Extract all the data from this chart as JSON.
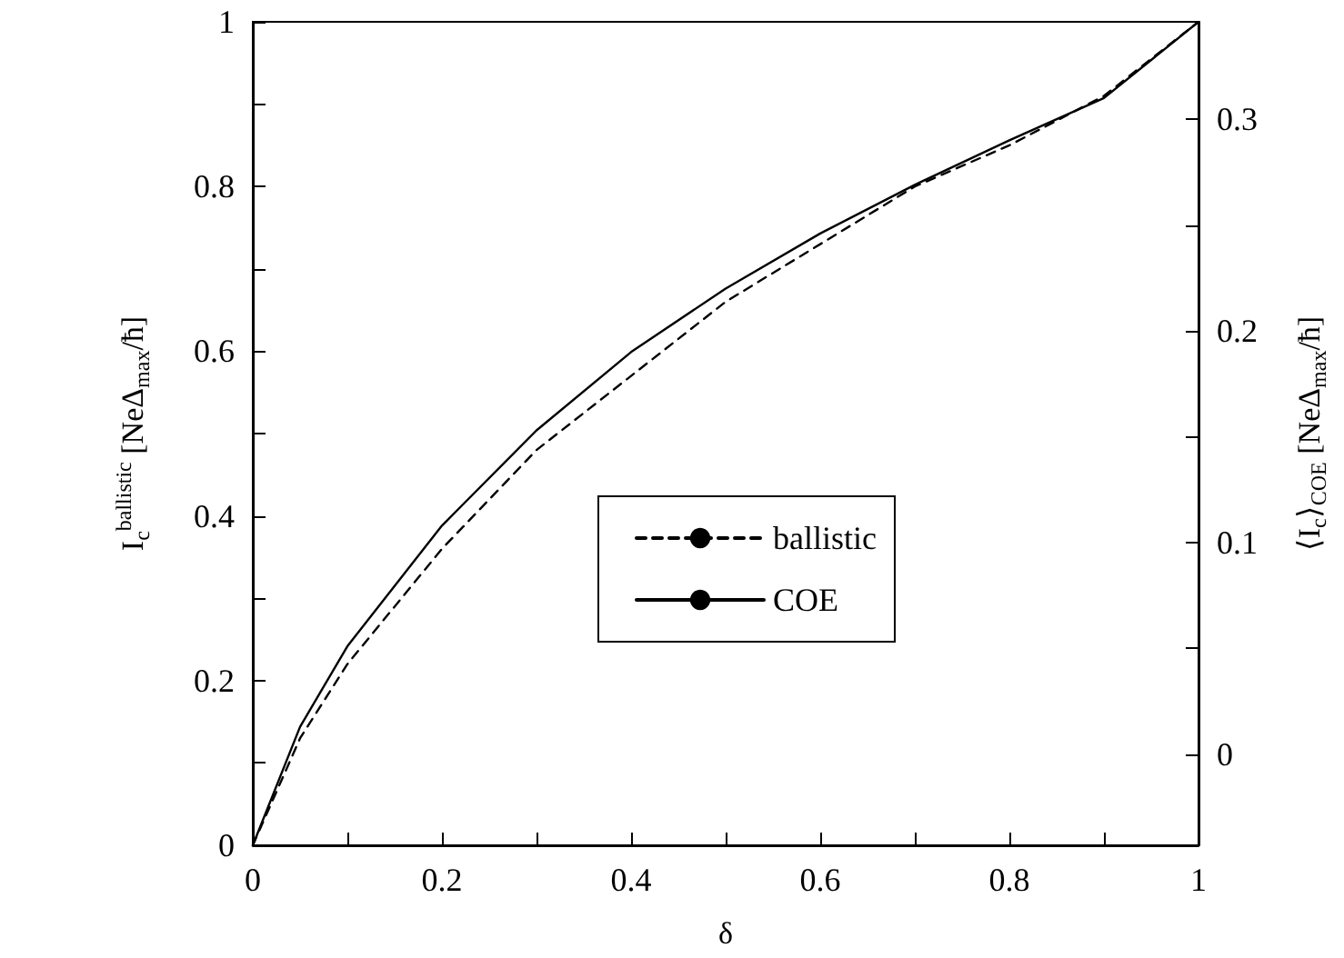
{
  "chart_data": {
    "type": "line",
    "xlabel": "δ",
    "ylabel": "I$_{c}$$^{ballistic}$ [NeΔ$_{max}$/ħ]",
    "y2label": "⟨I$_{c}$⟩$_{COE}$ [NeΔ$_{max}$/ħ]",
    "x": [
      0,
      0.05,
      0.1,
      0.2,
      0.3,
      0.4,
      0.5,
      0.6,
      0.7,
      0.8,
      0.9,
      1
    ],
    "series": [
      {
        "name": "ballistic",
        "color": "#000000",
        "line_style": "dashed",
        "values": [
          0,
          0.13,
          0.22,
          0.36,
          0.48,
          0.57,
          0.66,
          0.73,
          0.8,
          0.85,
          0.91,
          1
        ]
      },
      {
        "name": "COE",
        "color": "#000000",
        "line_style": "solid",
        "axis": "y2",
        "values": [
          -0.043,
          0.013,
          0.051,
          0.108,
          0.153,
          0.19,
          0.22,
          0.246,
          0.269,
          0.29,
          0.31,
          0.346
        ]
      }
    ],
    "xlim": [
      0,
      1
    ],
    "ylim": [
      0,
      1
    ],
    "y2lim": [
      -0.043,
      0.346
    ],
    "xticks": [
      0,
      {
        "value": 0.1,
        "label": null
      },
      0.2,
      {
        "value": 0.3,
        "label": null
      },
      0.4,
      {
        "value": 0.5,
        "label": null
      },
      0.6,
      {
        "value": 0.7,
        "label": null
      },
      0.8,
      {
        "value": 0.9,
        "label": null
      },
      1
    ],
    "yticks": [
      0,
      {
        "value": 0.1,
        "label": null
      },
      0.2,
      {
        "value": 0.3,
        "label": null
      },
      0.4,
      {
        "value": 0.5,
        "label": null
      },
      0.6,
      {
        "value": 0.7,
        "label": null
      },
      0.8,
      {
        "value": 0.9,
        "label": null
      },
      1
    ],
    "y2ticks": [
      0,
      {
        "value": 0.05,
        "label": null
      },
      0.1,
      {
        "value": 0.15,
        "label": null
      },
      0.2,
      {
        "value": 0.25,
        "label": null
      },
      0.3
    ],
    "legend": "center",
    "marker": "none",
    "grid": false
  }
}
